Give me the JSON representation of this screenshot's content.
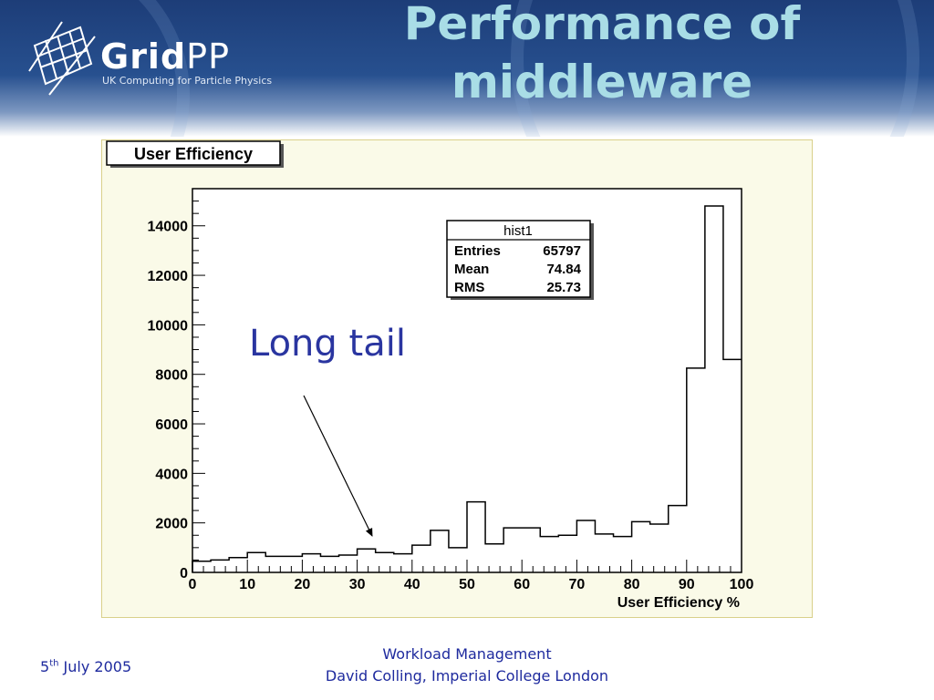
{
  "header": {
    "logo_word_bold": "Grid",
    "logo_word_light": "PP",
    "logo_subtitle": "UK Computing for Particle Physics",
    "title_line1": "Performance of",
    "title_line2": "middleware"
  },
  "annotation": {
    "text": "Long tail"
  },
  "footer": {
    "date_day": "5",
    "date_suffix": "th",
    "date_rest": " July 2005",
    "line1": "Workload Management",
    "line2": "David Colling, Imperial College London"
  },
  "colors": {
    "header_blue": "#27508f",
    "title_cyan": "#a9dde6",
    "annotation_blue": "#2a35a0",
    "footer_blue": "#1e2a9e",
    "frame_bg": "#fafae8"
  },
  "chart_data": {
    "type": "bar",
    "title": "User Efficiency",
    "xlabel": "User Efficiency %",
    "ylabel": "",
    "xlim": [
      0,
      100
    ],
    "ylim": [
      0,
      15500
    ],
    "bin_width": 3.333,
    "x_ticks": [
      0,
      10,
      20,
      30,
      40,
      50,
      60,
      70,
      80,
      90,
      100
    ],
    "y_ticks": [
      0,
      2000,
      4000,
      6000,
      8000,
      10000,
      12000,
      14000
    ],
    "values": [
      450,
      500,
      600,
      800,
      650,
      650,
      750,
      650,
      700,
      950,
      800,
      750,
      1100,
      1700,
      1000,
      2850,
      1150,
      1800,
      1800,
      1450,
      1500,
      2100,
      1550,
      1450,
      2050,
      1950,
      2700,
      8250,
      14800,
      8600
    ],
    "stats": {
      "name": "hist1",
      "rows": [
        {
          "label": "Entries",
          "value": "65797"
        },
        {
          "label": "Mean",
          "value": "74.84"
        },
        {
          "label": "RMS",
          "value": "25.73"
        }
      ]
    }
  }
}
